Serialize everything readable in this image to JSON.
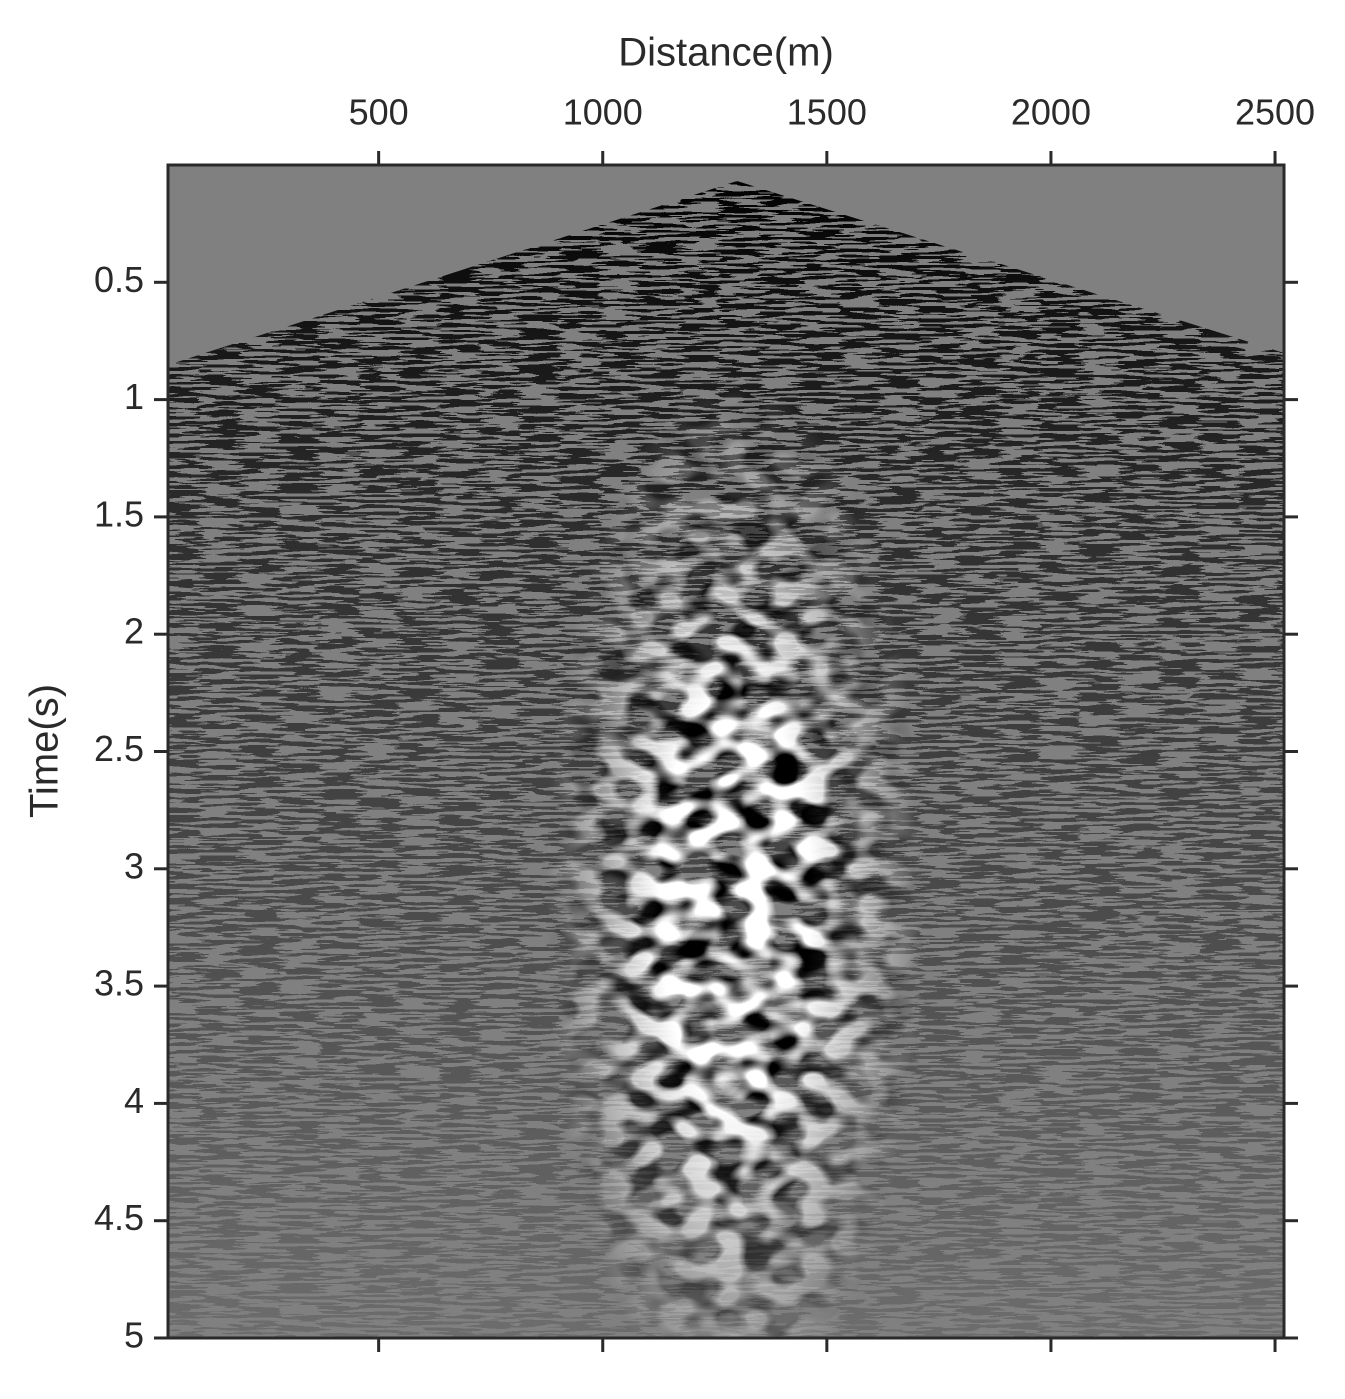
{
  "chart_data": {
    "type": "heatmap",
    "x_label": "Distance(m)",
    "y_label": "Time(s)",
    "xlim": [
      30,
      2520
    ],
    "xticks": [
      500,
      1000,
      1500,
      2000,
      2500
    ],
    "ylim": [
      0,
      5
    ],
    "yticks": [
      0.5,
      1,
      1.5,
      2,
      2.5,
      3,
      3.5,
      4,
      4.5,
      5
    ],
    "y_reversed": true,
    "x_axis_position": "top",
    "colormap": "gray"
  }
}
